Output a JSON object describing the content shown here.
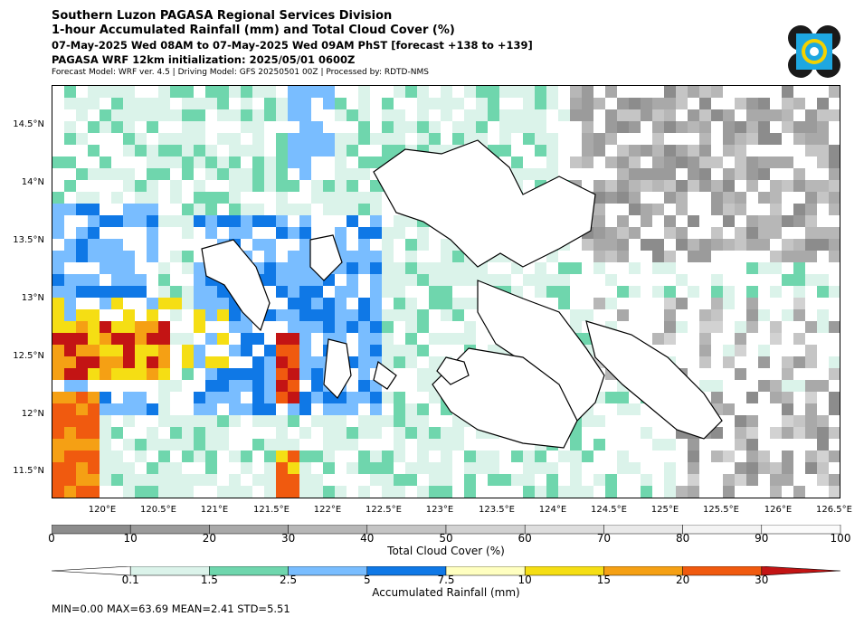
{
  "header": {
    "line1": "Southern Luzon PAGASA Regional Services Division",
    "line2": "1-hour Accumulated Rainfall (mm) and Total Cloud Cover (%)",
    "line3": "07-May-2025 Wed 08AM to 07-May-2025 Wed 09AM PhST [forecast +138 to +139]",
    "line4": "PAGASA WRF 12km initialization: 2025/05/01 0600Z",
    "line5": "Forecast Model: WRF ver. 4.5 | Driving Model: GFS 20250501 00Z | Processed by: RDTD-NMS"
  },
  "logo": {
    "name": "pagasa-logo",
    "colors": [
      "#1a1a1a",
      "#1ea7e1",
      "#f4d200"
    ]
  },
  "map": {
    "lat_labels": [
      "14.5°N",
      "14°N",
      "13.5°N",
      "13°N",
      "12.5°N",
      "12°N",
      "11.5°N"
    ],
    "lon_labels": [
      "120°E",
      "120.5°E",
      "121°E",
      "121.5°E",
      "122°E",
      "122.5°E",
      "123°E",
      "123.5°E",
      "124°E",
      "124.5°E",
      "125°E",
      "125.5°E",
      "126°E",
      "126.5°E"
    ],
    "lat_range": [
      11.27,
      14.85
    ],
    "lon_range": [
      119.55,
      126.55
    ]
  },
  "cloud_colorbar": {
    "ticks": [
      "0",
      "10",
      "20",
      "30",
      "40",
      "50",
      "60",
      "70",
      "80",
      "90",
      "100"
    ],
    "colors": [
      "#8c8c8c",
      "#9b9b9b",
      "#a9a9a9",
      "#b7b7b7",
      "#c5c5c5",
      "#d2d2d2",
      "#dedede",
      "#e9e9e9",
      "#f3f3f3",
      "#fbfbfb"
    ],
    "label": "Total Cloud Cover (%)"
  },
  "rain_colorbar": {
    "ticks": [
      "0.1",
      "1.5",
      "2.5",
      "5",
      "7.5",
      "10",
      "15",
      "20",
      "30"
    ],
    "colors": [
      "#dbf3ea",
      "#6fd6ad",
      "#79bdff",
      "#0f78e6",
      "#ffffc0",
      "#f5de14",
      "#f5a014",
      "#f05a0f",
      "#c31414"
    ],
    "label": "Accumulated Rainfall (mm)"
  },
  "stats": "MIN=0.00   MAX=63.69   MEAN=2.41   STD=5.51"
}
